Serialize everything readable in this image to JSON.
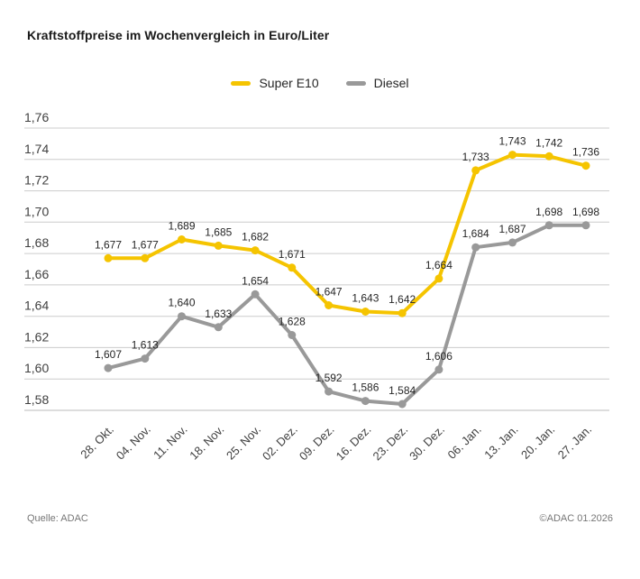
{
  "title": "Kraftstoffpreise im Wochenvergleich in Euro/Liter",
  "legend": {
    "items": [
      {
        "id": "super-e10",
        "label": "Super E10",
        "color": "#F5C400"
      },
      {
        "id": "diesel",
        "label": "Diesel",
        "color": "#999999"
      }
    ]
  },
  "footer": {
    "source": "Quelle: ADAC",
    "copyright": "©ADAC 01.2026"
  },
  "colors": {
    "super_e10": "#F5C400",
    "diesel": "#999999",
    "gridline": "#CCCCCC",
    "axis_line": "#BBBBBB",
    "axis_label": "#404040",
    "value_label": "#262626",
    "title_text": "#1A1A1A",
    "footer_text": "#767676",
    "background": "#FFFFFF"
  },
  "chart_data": {
    "type": "line",
    "title": "Kraftstoffpreise im Wochenvergleich in Euro/Liter",
    "unit": "Euro/Liter",
    "grid": true,
    "legend_position": "top-center",
    "ylim": [
      1.58,
      1.76
    ],
    "categories": [
      "28. Okt.",
      "04. Nov.",
      "11. Nov.",
      "18. Nov.",
      "25. Nov.",
      "02. Dez.",
      "09. Dez.",
      "16. Dez.",
      "23. Dez.",
      "30. Dez.",
      "06. Jan.",
      "13. Jan.",
      "20. Jan.",
      "27. Jan."
    ],
    "yticks": {
      "values": [
        1.58,
        1.6,
        1.62,
        1.64,
        1.66,
        1.68,
        1.7,
        1.72,
        1.74,
        1.76
      ],
      "labels": [
        "1,58",
        "1,60",
        "1,62",
        "1,64",
        "1,66",
        "1,68",
        "1,70",
        "1,72",
        "1,74",
        "1,76"
      ]
    },
    "series": [
      {
        "name": "Super E10",
        "color": "#F5C400",
        "values": [
          1.677,
          1.677,
          1.689,
          1.685,
          1.682,
          1.671,
          1.647,
          1.643,
          1.642,
          1.664,
          1.733,
          1.743,
          1.742,
          1.736
        ],
        "point_labels": [
          "1,677",
          "1,677",
          "1,689",
          "1,685",
          "1,682",
          "1,671",
          "1,647",
          "1,643",
          "1,642",
          "1,664",
          "1,733",
          "1,743",
          "1,742",
          "1,736"
        ]
      },
      {
        "name": "Diesel",
        "color": "#999999",
        "values": [
          1.607,
          1.613,
          1.64,
          1.633,
          1.654,
          1.628,
          1.592,
          1.586,
          1.584,
          1.606,
          1.684,
          1.687,
          1.698,
          1.698
        ],
        "point_labels": [
          "1,607",
          "1,613",
          "1,640",
          "1,633",
          "1,654",
          "1,628",
          "1,592",
          "1,586",
          "1,584",
          "1,606",
          "1,684",
          "1,687",
          "1,698",
          "1,698"
        ]
      }
    ]
  }
}
